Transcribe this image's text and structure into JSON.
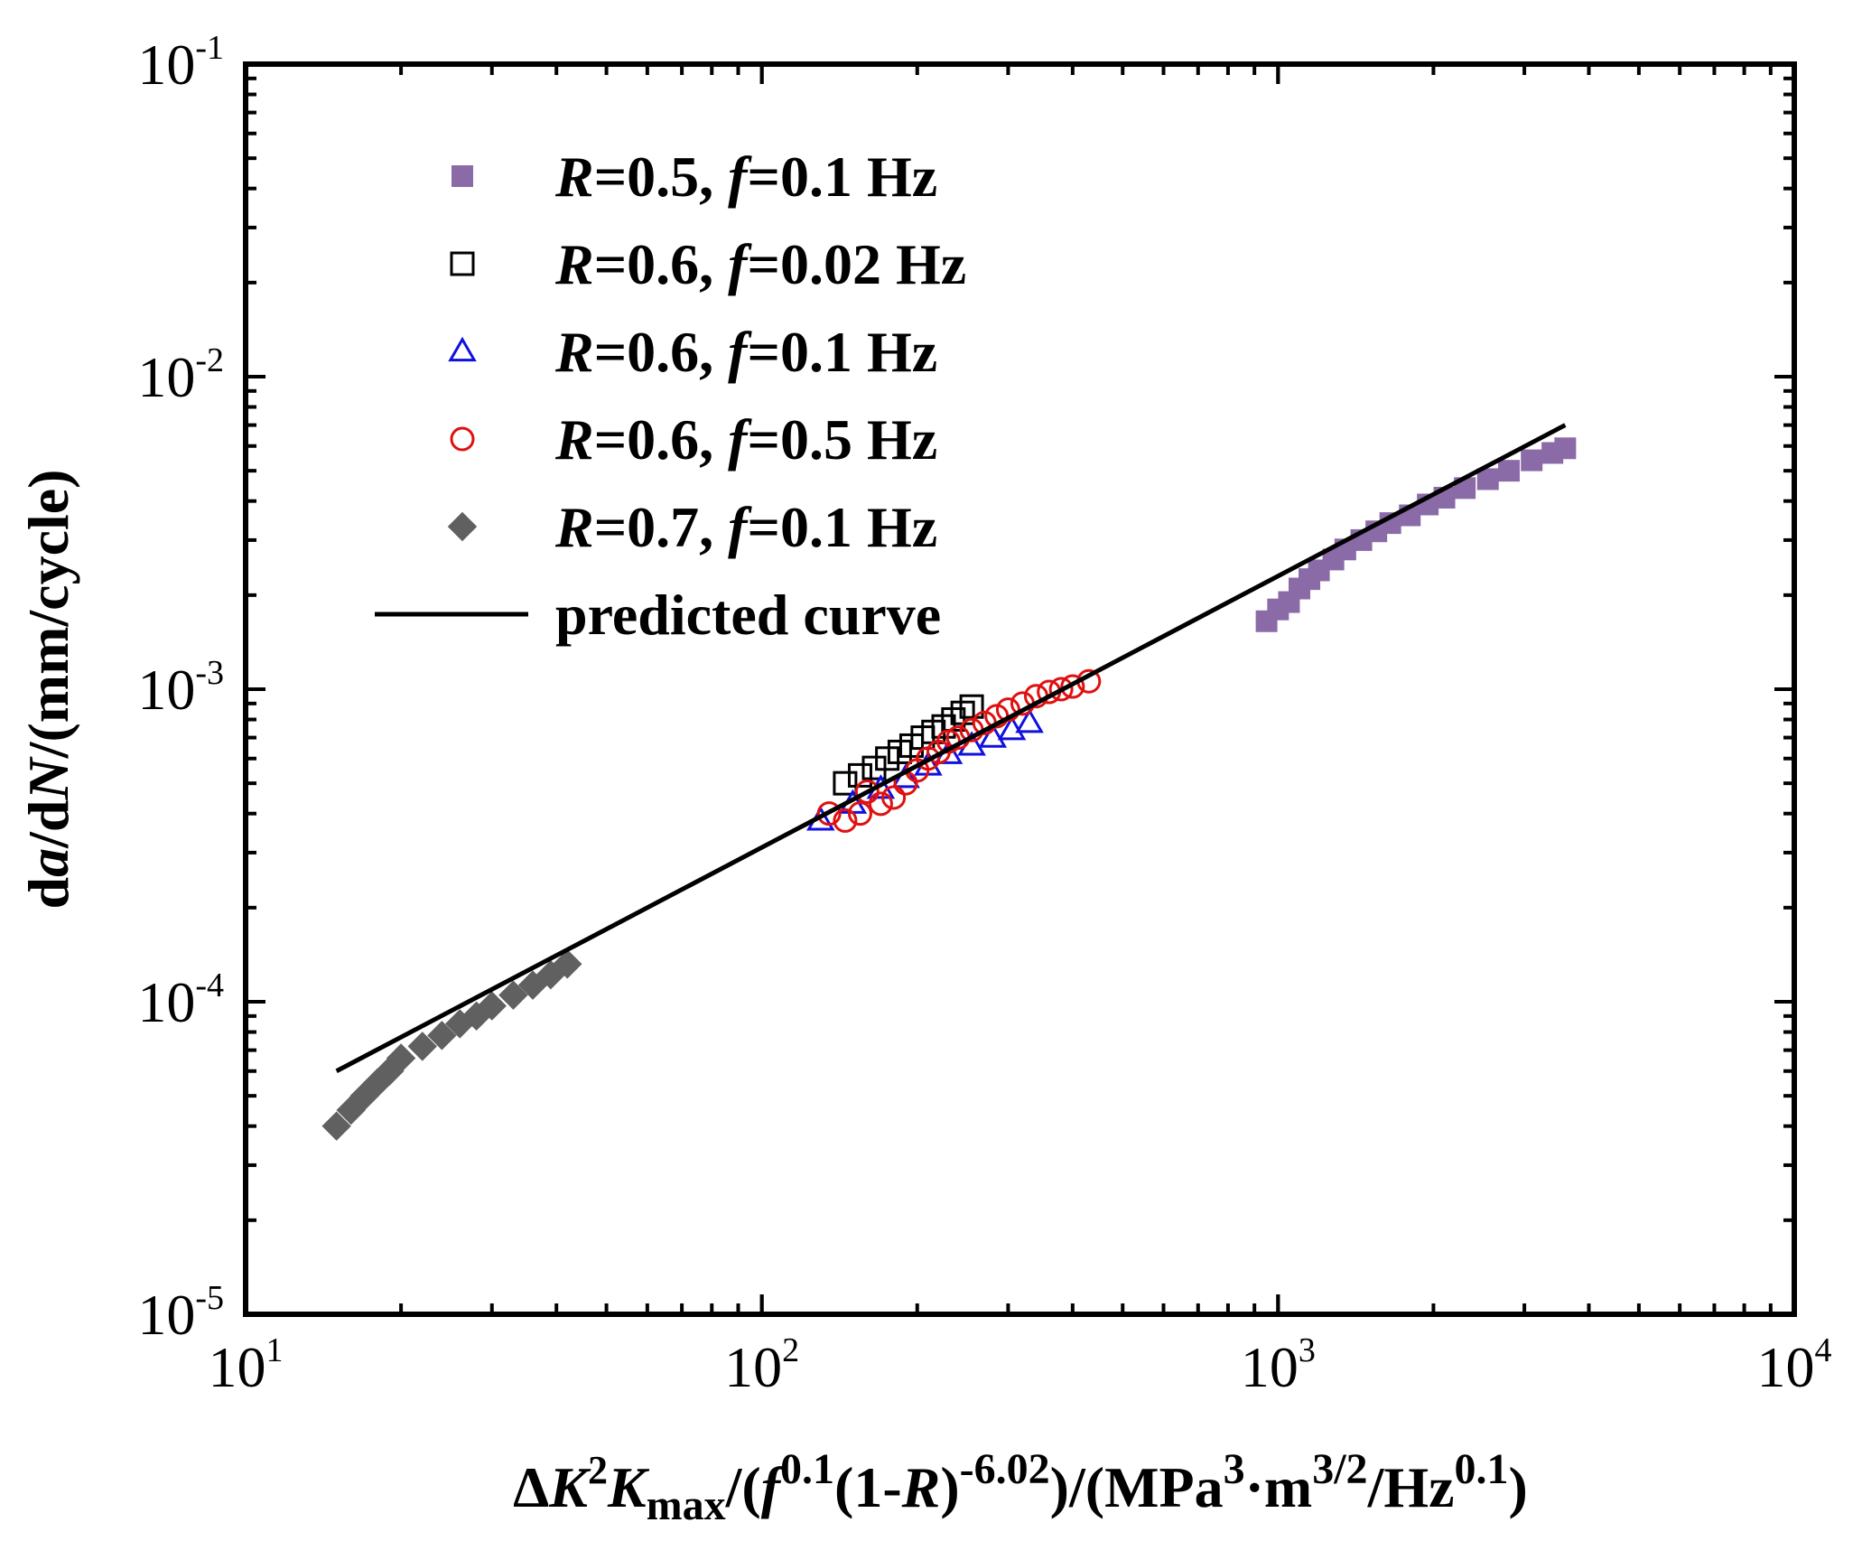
{
  "colors": {
    "r05_f01": "#8a6ba8",
    "r06_f002": "#000000",
    "r06_f01": "#1010e0",
    "r06_f05": "#e01010",
    "r07_f01": "#606060",
    "predicted": "#000000"
  },
  "chart_data": {
    "type": "scatter",
    "x_scale": "log",
    "y_scale": "log",
    "xlim": [
      10,
      10000
    ],
    "ylim": [
      1e-05,
      0.1
    ],
    "x_ticks": [
      {
        "base": "10",
        "exp": "1"
      },
      {
        "base": "10",
        "exp": "2"
      },
      {
        "base": "10",
        "exp": "3"
      },
      {
        "base": "10",
        "exp": "4"
      }
    ],
    "y_ticks": [
      {
        "base": "10",
        "exp": "-5"
      },
      {
        "base": "10",
        "exp": "-4"
      },
      {
        "base": "10",
        "exp": "-3"
      },
      {
        "base": "10",
        "exp": "-2"
      },
      {
        "base": "10",
        "exp": "-1"
      }
    ],
    "xlabel": {
      "delta": "Δ",
      "k": "K",
      "sq": "2",
      "k2": "K",
      "max": "max",
      "part1": "/(",
      "f": "f",
      "exp1": "0.1",
      "part2": "(1-",
      "r": "R",
      "part3": ")",
      "exp2": "-6.02",
      "part4": ")/(MPa",
      "exp3": "3",
      "part5": "·m",
      "exp4": "3/2",
      "part6": "/Hz",
      "exp5": "0.1",
      "part7": ")"
    },
    "ylabel": {
      "pre": "d",
      "a": "a",
      "mid": "/d",
      "n": "N",
      "post": "/(mm/cycle)"
    },
    "series": [
      {
        "name": "R=0.5, f=0.1 Hz",
        "label": {
          "r": "R",
          "rval": "=0.5, ",
          "f": "f",
          "fval": "=0.1 Hz"
        },
        "marker": "filled-square",
        "color_key": "r05_f01",
        "points": [
          [
            950,
            0.00165
          ],
          [
            1000,
            0.0018
          ],
          [
            1050,
            0.0019
          ],
          [
            1100,
            0.0021
          ],
          [
            1150,
            0.00225
          ],
          [
            1200,
            0.0024
          ],
          [
            1280,
            0.0026
          ],
          [
            1350,
            0.0028
          ],
          [
            1450,
            0.003
          ],
          [
            1550,
            0.0032
          ],
          [
            1650,
            0.0034
          ],
          [
            1800,
            0.0036
          ],
          [
            1950,
            0.0039
          ],
          [
            2100,
            0.0041
          ],
          [
            2300,
            0.0044
          ],
          [
            2550,
            0.0047
          ],
          [
            2800,
            0.005
          ],
          [
            3100,
            0.0054
          ],
          [
            3400,
            0.0057
          ],
          [
            3600,
            0.0059
          ]
        ]
      },
      {
        "name": "R=0.6, f=0.02 Hz",
        "label": {
          "r": "R",
          "rval": "=0.6, ",
          "f": "f",
          "fval": "=0.02 Hz"
        },
        "marker": "open-square",
        "color_key": "r06_f002",
        "points": [
          [
            145,
            0.0005
          ],
          [
            155,
            0.00053
          ],
          [
            165,
            0.00056
          ],
          [
            175,
            0.0006
          ],
          [
            185,
            0.00063
          ],
          [
            195,
            0.00066
          ],
          [
            205,
            0.0007
          ],
          [
            215,
            0.00073
          ],
          [
            225,
            0.00076
          ],
          [
            235,
            0.0008
          ],
          [
            245,
            0.00084
          ],
          [
            255,
            0.00088
          ]
        ]
      },
      {
        "name": "R=0.6, f=0.1 Hz",
        "label": {
          "r": "R",
          "rval": "=0.6, ",
          "f": "f",
          "fval": "=0.1 Hz"
        },
        "marker": "open-triangle",
        "color_key": "r06_f01",
        "points": [
          [
            130,
            0.00038
          ],
          [
            150,
            0.00043
          ],
          [
            170,
            0.00048
          ],
          [
            190,
            0.00052
          ],
          [
            210,
            0.00057
          ],
          [
            230,
            0.00062
          ],
          [
            255,
            0.00066
          ],
          [
            280,
            0.0007
          ],
          [
            305,
            0.00074
          ],
          [
            330,
            0.00078
          ]
        ]
      },
      {
        "name": "R=0.6, f=0.5 Hz",
        "label": {
          "r": "R",
          "rval": "=0.6, ",
          "f": "f",
          "fval": "=0.5 Hz"
        },
        "marker": "open-circle",
        "color_key": "r06_f05",
        "points": [
          [
            135,
            0.0004
          ],
          [
            145,
            0.00038
          ],
          [
            155,
            0.0004
          ],
          [
            160,
            0.00047
          ],
          [
            170,
            0.00043
          ],
          [
            180,
            0.00045
          ],
          [
            190,
            0.0005
          ],
          [
            200,
            0.00055
          ],
          [
            210,
            0.0006
          ],
          [
            220,
            0.00063
          ],
          [
            230,
            0.00068
          ],
          [
            240,
            0.0007
          ],
          [
            255,
            0.00074
          ],
          [
            270,
            0.00078
          ],
          [
            285,
            0.00082
          ],
          [
            300,
            0.00086
          ],
          [
            320,
            0.0009
          ],
          [
            340,
            0.00095
          ],
          [
            360,
            0.00098
          ],
          [
            380,
            0.001
          ],
          [
            400,
            0.00102
          ],
          [
            430,
            0.00106
          ]
        ]
      },
      {
        "name": "R=0.7, f=0.1 Hz",
        "label": {
          "r": "R",
          "rval": "=0.7, ",
          "f": "f",
          "fval": "=0.1 Hz"
        },
        "marker": "filled-diamond",
        "color_key": "r07_f01",
        "points": [
          [
            15,
            4e-05
          ],
          [
            16,
            4.5e-05
          ],
          [
            17,
            5e-05
          ],
          [
            18,
            5.5e-05
          ],
          [
            19,
            6e-05
          ],
          [
            20,
            6.6e-05
          ],
          [
            22,
            7.2e-05
          ],
          [
            24,
            7.8e-05
          ],
          [
            26,
            8.5e-05
          ],
          [
            28,
            9e-05
          ],
          [
            30,
            9.7e-05
          ],
          [
            33,
            0.000105
          ],
          [
            36,
            0.000113
          ],
          [
            39,
            0.000122
          ],
          [
            42,
            0.000132
          ]
        ]
      }
    ],
    "line": {
      "name": "predicted curve",
      "label": "predicted curve",
      "color_key": "predicted",
      "x": [
        15,
        3600
      ],
      "y": [
        6e-05,
        0.007
      ]
    },
    "legend_position": "top-left",
    "grid": false
  }
}
